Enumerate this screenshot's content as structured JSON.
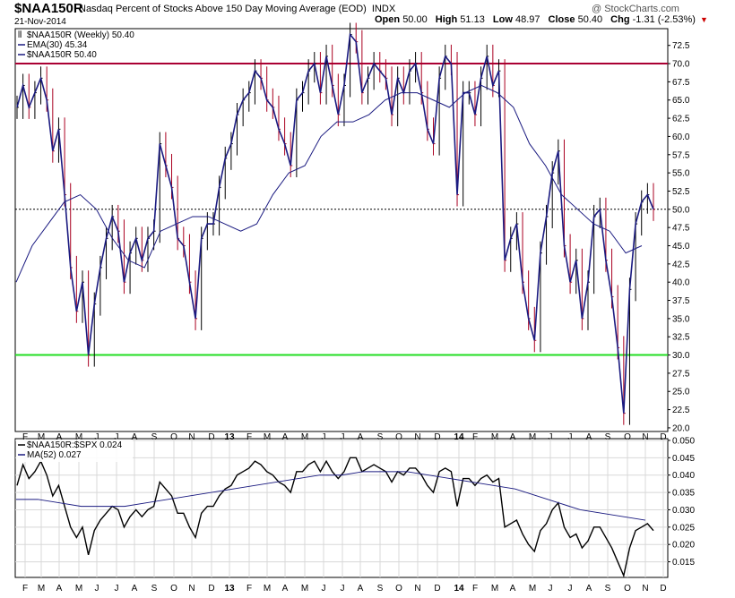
{
  "header": {
    "symbol": "$NAA150R",
    "description": "Nasdaq Percent of Stocks Above 150 Day Moving Average (EOD)",
    "exchange": "INDX",
    "date": "21-Nov-2014",
    "copyright": "@ StockCharts.com",
    "quote": {
      "open_label": "Open",
      "open": "50.00",
      "high_label": "High",
      "high": "51.13",
      "low_label": "Low",
      "low": "48.97",
      "close_label": "Close",
      "close": "50.40",
      "chg_label": "Chg",
      "chg": "-1.31 (-2.53%)",
      "down_color": "#cc0000"
    }
  },
  "colors": {
    "price_line": "#1a1a80",
    "ema_line": "#1a1a80",
    "up_bar": "#000000",
    "down_bar": "#aa0020",
    "upper_band": "#aa0033",
    "lower_band": "#22dd22",
    "ratio_line": "#000000",
    "ma_line": "#1a1a80",
    "grid": "#d8d8d8",
    "ref_line": "#000000"
  },
  "chart_data": [
    {
      "type": "line",
      "title": "$NAA150R (Weekly) 50.40",
      "legend": [
        {
          "label": "$NAA150R (Weekly) 50.40",
          "kind": "bars"
        },
        {
          "label": "EMA(30) 45.34",
          "kind": "line"
        },
        {
          "label": "$NAA150R 50.40",
          "kind": "line"
        }
      ],
      "legend_placement": "top-left",
      "x_ticks": [
        "F",
        "M",
        "A",
        "M",
        "J",
        "J",
        "A",
        "S",
        "O",
        "N",
        "D",
        "13",
        "F",
        "M",
        "A",
        "M",
        "J",
        "J",
        "A",
        "S",
        "O",
        "N",
        "D",
        "14",
        "F",
        "M",
        "A",
        "M",
        "J",
        "J",
        "A",
        "S",
        "O",
        "N",
        "D"
      ],
      "y_ticks": [
        20.0,
        22.5,
        25.0,
        27.5,
        30.0,
        32.5,
        35.0,
        37.5,
        40.0,
        42.5,
        45.0,
        47.5,
        50.0,
        52.5,
        55.0,
        57.5,
        60.0,
        62.5,
        65.0,
        67.5,
        70.0,
        72.5
      ],
      "ylim": [
        19.5,
        74.8
      ],
      "grid": false,
      "reference_lines": [
        {
          "value": 70.0,
          "style": "solid",
          "color_key": "upper_band"
        },
        {
          "value": 30.0,
          "style": "solid",
          "color_key": "lower_band"
        },
        {
          "value": 50.0,
          "style": "dotted",
          "color_key": "ref_line"
        }
      ],
      "series": [
        {
          "name": "$NAA150R",
          "values": [
            64,
            67,
            64,
            66,
            68,
            65,
            58,
            61,
            52,
            42,
            36,
            40,
            30,
            37,
            42,
            46,
            49,
            47,
            40,
            44,
            46,
            43,
            46,
            47,
            59,
            56,
            53,
            46,
            45,
            40,
            35,
            46,
            48,
            48,
            53,
            57,
            59,
            63,
            65,
            66,
            69,
            68,
            65,
            64,
            61,
            59,
            56,
            65,
            66,
            69,
            70,
            66,
            71,
            67,
            63,
            67,
            74,
            73,
            66,
            68,
            70,
            69,
            68,
            63,
            68,
            66,
            69,
            70,
            66,
            61,
            59,
            68,
            71,
            70,
            52,
            66,
            66,
            63,
            68,
            71,
            67,
            69,
            43,
            46,
            48,
            40,
            35,
            32,
            44,
            49,
            55,
            58,
            45,
            40,
            43,
            35,
            40,
            49,
            50,
            43,
            38,
            31,
            22,
            39,
            48,
            51,
            52,
            50
          ],
          "start_date": "2012-02-03",
          "interval": "weekly"
        },
        {
          "name": "EMA(30)",
          "values": [
            40,
            45,
            48,
            51,
            52,
            50,
            46,
            43,
            42,
            47,
            48,
            49,
            49,
            48,
            47,
            48,
            52,
            55,
            56,
            60,
            62,
            62,
            63,
            65,
            66,
            66,
            65,
            64,
            66,
            67,
            66,
            64,
            59,
            56,
            52,
            50,
            48,
            47,
            44,
            45
          ]
        }
      ]
    },
    {
      "type": "line",
      "title": "$NAA150R:$SPX 0.024",
      "legend": [
        {
          "label": "$NAA150R:$SPX 0.024",
          "kind": "line"
        },
        {
          "label": "MA(52) 0.027",
          "kind": "line"
        }
      ],
      "legend_placement": "top-left",
      "x_ticks": [
        "F",
        "M",
        "A",
        "M",
        "J",
        "J",
        "A",
        "S",
        "O",
        "N",
        "D",
        "13",
        "F",
        "M",
        "A",
        "M",
        "J",
        "J",
        "A",
        "S",
        "O",
        "N",
        "D",
        "14",
        "F",
        "M",
        "A",
        "M",
        "J",
        "J",
        "A",
        "S",
        "O",
        "N",
        "D"
      ],
      "y_ticks": [
        0.015,
        0.02,
        0.025,
        0.03,
        0.035,
        0.04,
        0.045,
        0.05
      ],
      "ylim": [
        0.0105,
        0.0505
      ],
      "grid": true,
      "series": [
        {
          "name": "$NAA150R:$SPX",
          "values": [
            0.037,
            0.043,
            0.039,
            0.041,
            0.044,
            0.04,
            0.034,
            0.037,
            0.031,
            0.025,
            0.022,
            0.025,
            0.017,
            0.024,
            0.027,
            0.029,
            0.031,
            0.03,
            0.025,
            0.028,
            0.03,
            0.028,
            0.03,
            0.031,
            0.038,
            0.036,
            0.034,
            0.029,
            0.029,
            0.025,
            0.022,
            0.029,
            0.031,
            0.031,
            0.034,
            0.036,
            0.037,
            0.04,
            0.041,
            0.042,
            0.044,
            0.043,
            0.041,
            0.04,
            0.038,
            0.037,
            0.035,
            0.041,
            0.041,
            0.043,
            0.044,
            0.041,
            0.044,
            0.041,
            0.039,
            0.041,
            0.045,
            0.045,
            0.041,
            0.042,
            0.043,
            0.042,
            0.041,
            0.038,
            0.041,
            0.04,
            0.042,
            0.042,
            0.04,
            0.037,
            0.035,
            0.041,
            0.042,
            0.041,
            0.031,
            0.039,
            0.039,
            0.037,
            0.039,
            0.04,
            0.038,
            0.039,
            0.025,
            0.026,
            0.027,
            0.023,
            0.02,
            0.018,
            0.024,
            0.026,
            0.03,
            0.032,
            0.025,
            0.022,
            0.023,
            0.019,
            0.021,
            0.025,
            0.025,
            0.022,
            0.019,
            0.015,
            0.011,
            0.019,
            0.024,
            0.025,
            0.026,
            0.024
          ],
          "start_date": "2012-02-03",
          "interval": "weekly"
        },
        {
          "name": "MA(52)",
          "values": [
            0.033,
            0.033,
            0.032,
            0.031,
            0.031,
            0.031,
            0.032,
            0.033,
            0.034,
            0.035,
            0.036,
            0.037,
            0.038,
            0.039,
            0.04,
            0.04,
            0.041,
            0.041,
            0.041,
            0.04,
            0.039,
            0.038,
            0.037,
            0.036,
            0.034,
            0.032,
            0.03,
            0.029,
            0.028,
            0.027
          ]
        }
      ]
    }
  ]
}
